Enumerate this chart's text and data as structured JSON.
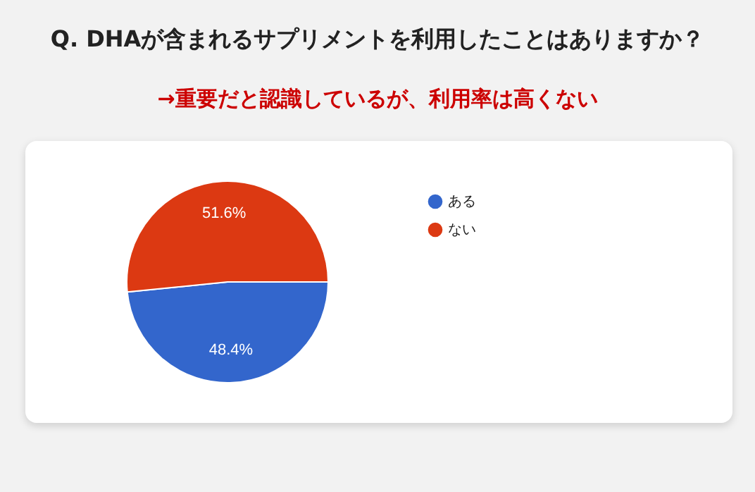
{
  "chart_data": {
    "type": "pie",
    "title": "Q. DHAが含まれるサプリメントを利用したことはありますか？",
    "subtitle": "→重要だと認識しているが、利用率は高くない",
    "categories": [
      "ある",
      "ない"
    ],
    "values": [
      48.4,
      51.6
    ],
    "colors": [
      "#3366cc",
      "#dc3912"
    ],
    "value_labels": [
      "48.4%",
      "51.6%"
    ],
    "legend": "right"
  }
}
